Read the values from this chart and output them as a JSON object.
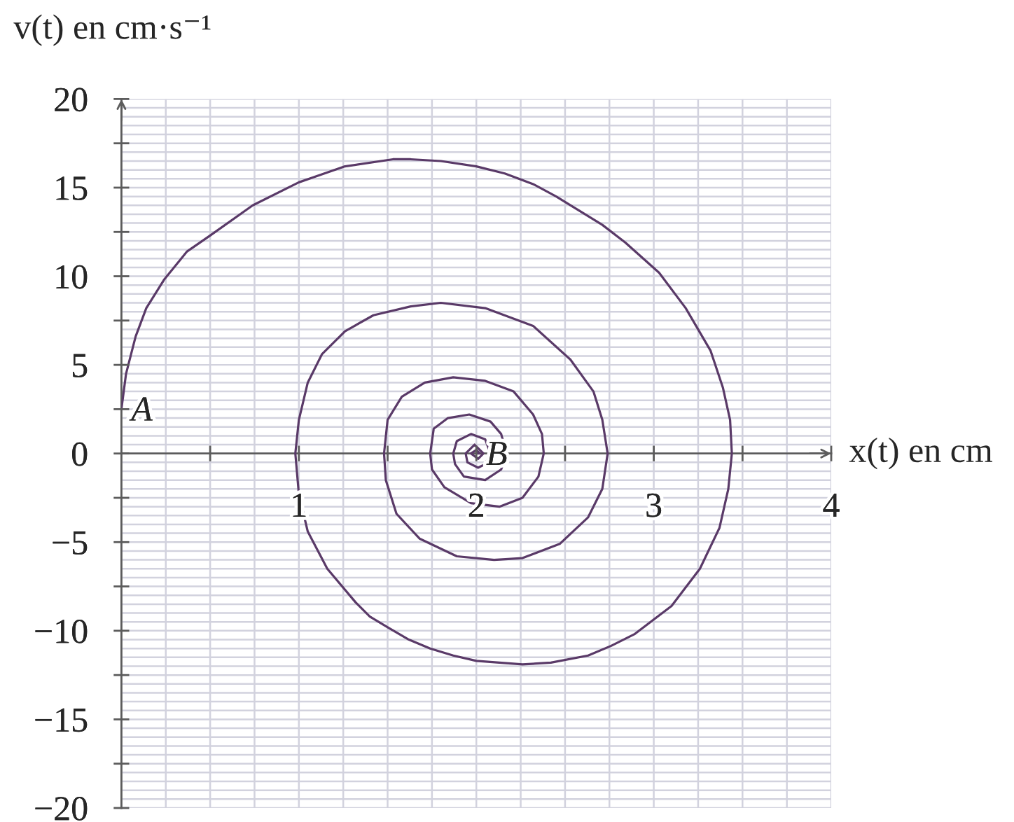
{
  "chart_data": {
    "type": "line",
    "xlabel": "x(t) en cm",
    "ylabel": "v(t) en cm·s⁻¹",
    "series": [
      {
        "color": "#5a3a68",
        "x": [
          0,
          0.026,
          0.08,
          0.14,
          0.24,
          0.37,
          0.5,
          0.74,
          1.0,
          1.26,
          1.53,
          1.63,
          1.8,
          2.0,
          2.16,
          2.32,
          2.45,
          2.58,
          2.71,
          2.84,
          3.03,
          3.18,
          3.32,
          3.39,
          3.43,
          3.44,
          3.42,
          3.37,
          3.26,
          3.1,
          2.89,
          2.76,
          2.63,
          2.42,
          2.26,
          2.0,
          1.87,
          1.74,
          1.62,
          1.5,
          1.4,
          1.32,
          1.16,
          1.05,
          1.0,
          0.98,
          1.0,
          1.05,
          1.13,
          1.26,
          1.42,
          1.63,
          1.8,
          2.05,
          2.32,
          2.53,
          2.66,
          2.71,
          2.74,
          2.71,
          2.63,
          2.47,
          2.26,
          2.1,
          1.89,
          1.68,
          1.55,
          1.49,
          1.48,
          1.5,
          1.58,
          1.66,
          1.71,
          1.87,
          2.05,
          2.21,
          2.32,
          2.37,
          2.38,
          2.35,
          2.26,
          2.13,
          1.97,
          1.82,
          1.75,
          1.74,
          1.76,
          1.84,
          1.96,
          2.08,
          2.14,
          2.17,
          2.14,
          2.05,
          1.93,
          1.88,
          1.87,
          1.89,
          1.97,
          2.05,
          2.08,
          2.05,
          2.01,
          1.95,
          1.94,
          1.99,
          2.04,
          2.01,
          1.97,
          2.0,
          2.02,
          2.0
        ],
        "values": [
          2.5,
          4.5,
          6.6,
          8.2,
          9.8,
          11.4,
          12.3,
          14.0,
          15.3,
          16.2,
          16.6,
          16.6,
          16.5,
          16.2,
          15.8,
          15.2,
          14.5,
          13.7,
          12.9,
          11.9,
          10.2,
          8.2,
          5.8,
          3.7,
          1.9,
          0,
          -2.0,
          -4.2,
          -6.5,
          -8.6,
          -10.2,
          -10.85,
          -11.4,
          -11.8,
          -11.9,
          -11.7,
          -11.4,
          -11.0,
          -10.5,
          -9.8,
          -9.2,
          -8.4,
          -6.5,
          -4.4,
          -2.3,
          0,
          1.9,
          4.0,
          5.6,
          6.9,
          7.8,
          8.3,
          8.5,
          8.2,
          7.2,
          5.3,
          3.5,
          1.9,
          0,
          -2.0,
          -3.6,
          -5.1,
          -5.9,
          -6.0,
          -5.8,
          -4.8,
          -3.4,
          -1.5,
          0,
          1.9,
          3.2,
          3.7,
          4.0,
          4.3,
          4.1,
          3.5,
          2.2,
          1.1,
          0,
          -1.3,
          -2.5,
          -3.0,
          -2.8,
          -1.9,
          -0.9,
          0,
          1.4,
          2.0,
          2.2,
          1.8,
          1.1,
          0,
          -0.9,
          -1.5,
          -1.3,
          -0.6,
          0,
          0.7,
          1.1,
          0.8,
          0,
          -0.6,
          -0.8,
          -0.5,
          0,
          0.5,
          0,
          -0.3,
          0,
          0.2,
          0,
          0
        ]
      }
    ],
    "xlim": [
      0,
      4
    ],
    "ylim": [
      -20,
      20
    ],
    "xticks": [
      {
        "value": 0.5,
        "label": null
      },
      1,
      {
        "value": 1.5,
        "label": null
      },
      2,
      {
        "value": 2.5,
        "label": null
      },
      3,
      {
        "value": 3.5,
        "label": null
      },
      4
    ],
    "yticks": [
      {
        "value": -20,
        "label": "−20"
      },
      {
        "value": -17.5,
        "label": null
      },
      {
        "value": -15,
        "label": "−15"
      },
      {
        "value": -12.5,
        "label": null
      },
      {
        "value": -10,
        "label": "−10"
      },
      {
        "value": -7.5,
        "label": null
      },
      {
        "value": -5,
        "label": "−5"
      },
      {
        "value": -2.5,
        "label": null
      },
      0,
      {
        "value": 2.5,
        "label": null
      },
      5,
      {
        "value": 7.5,
        "label": null
      },
      10,
      {
        "value": 12.5,
        "label": null
      },
      15,
      {
        "value": 17.5,
        "label": null
      },
      20
    ],
    "grid": true,
    "annotations": [
      {
        "text": "A",
        "x": 0,
        "y": 2.5
      },
      {
        "text": "B",
        "x": 2,
        "y": 0
      }
    ]
  }
}
